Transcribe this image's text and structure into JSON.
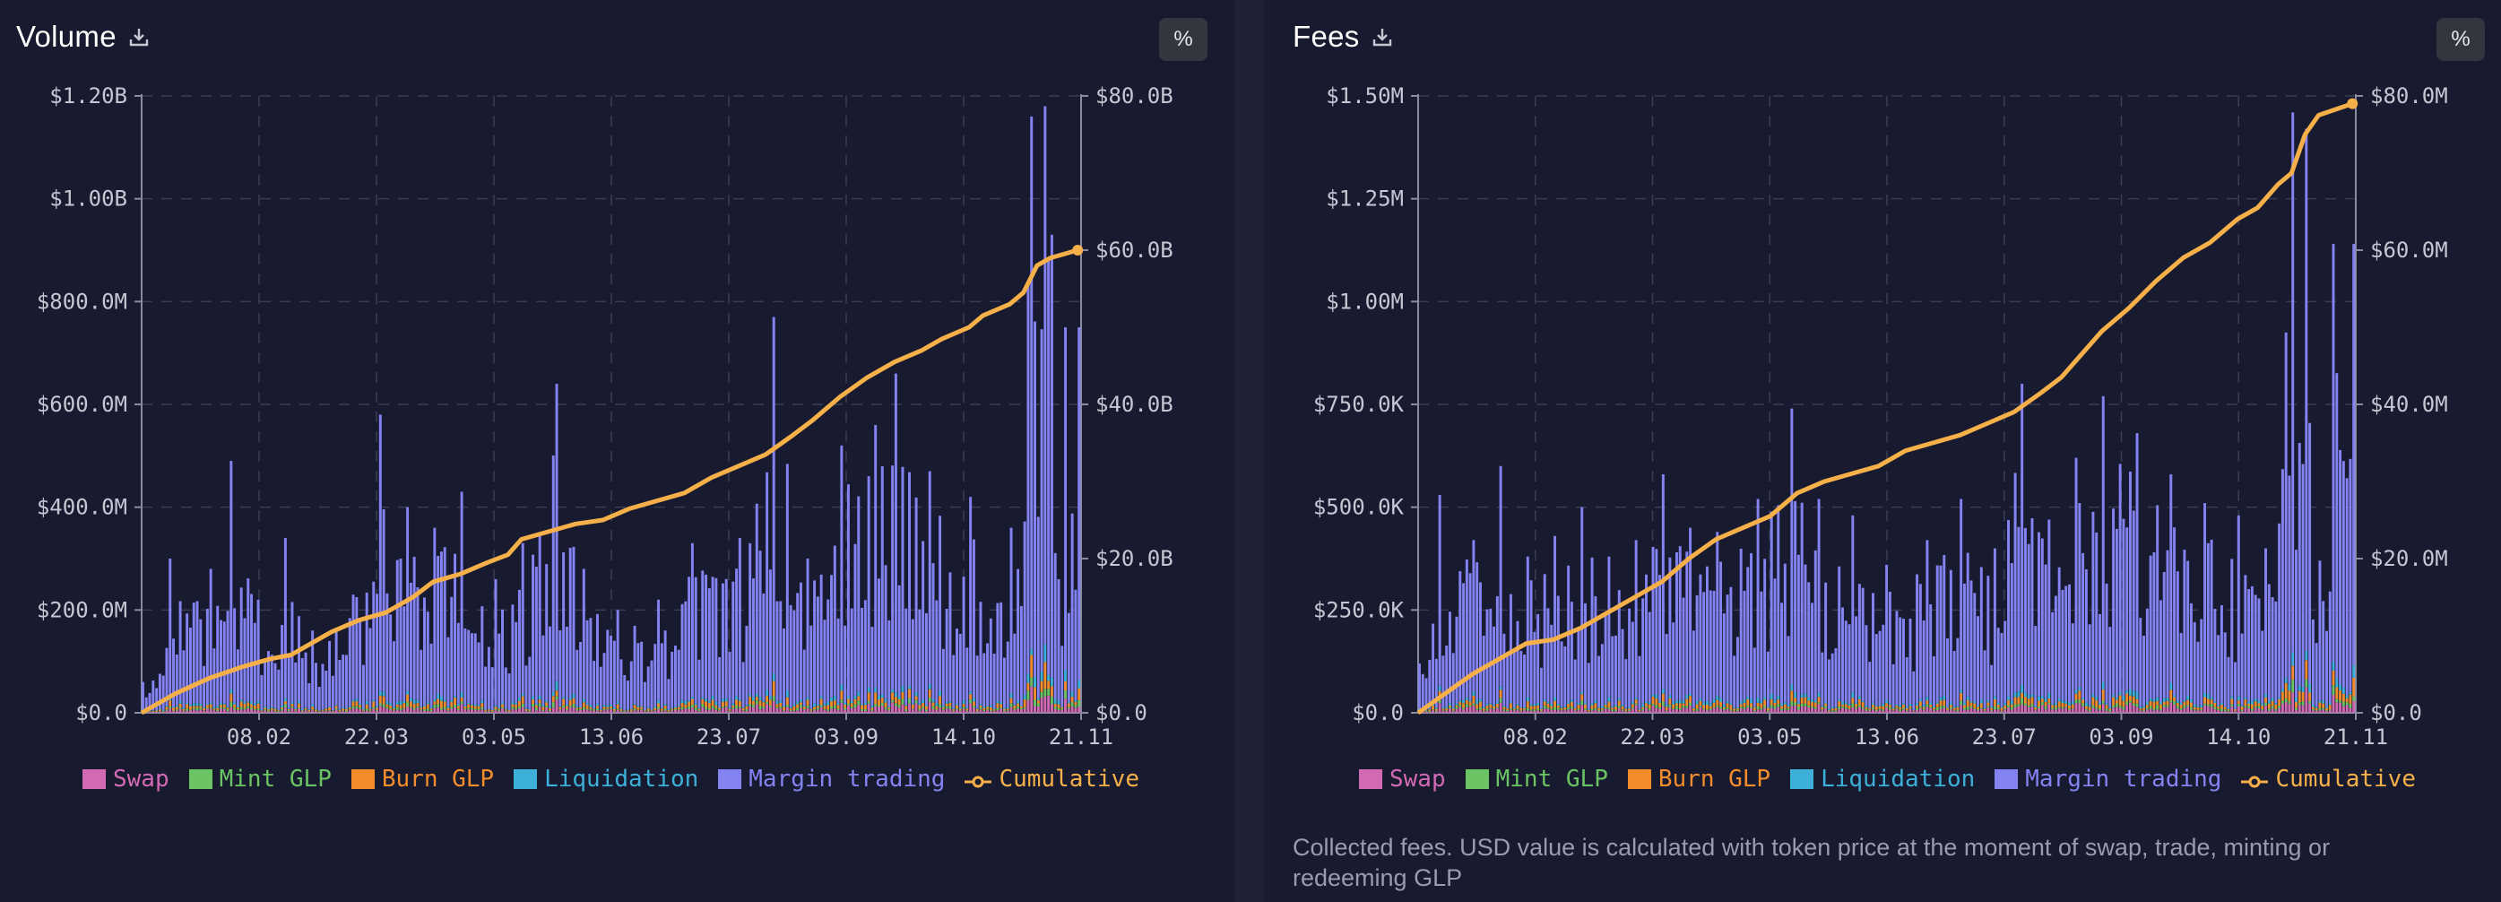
{
  "colors": {
    "swap": "#d26ab3",
    "mint_glp": "#6ac463",
    "burn_glp": "#f28c2c",
    "liquidation": "#3cb0d8",
    "margin_trading": "#8383f2",
    "cumulative": "#f6b04a",
    "grid": "#3a3c54"
  },
  "icons": {
    "download": "download-icon"
  },
  "volume": {
    "title": "Volume",
    "pct_label": "%",
    "legend": [
      "Swap",
      "Mint GLP",
      "Burn GLP",
      "Liquidation",
      "Margin trading",
      "Cumulative"
    ]
  },
  "fees": {
    "title": "Fees",
    "pct_label": "%",
    "legend": [
      "Swap",
      "Mint GLP",
      "Burn GLP",
      "Liquidation",
      "Margin trading",
      "Cumulative"
    ],
    "note": "Collected fees. USD value is calculated with token price at the moment of swap, trade, minting or redeeming GLP"
  },
  "chart_data": [
    {
      "type": "bar",
      "title": "Volume",
      "stacked": true,
      "x_ticks": [
        "08.02",
        "22.03",
        "03.05",
        "13.06",
        "23.07",
        "03.09",
        "14.10",
        "21.11"
      ],
      "left_axis": {
        "ticks": [
          "$0.0",
          "$200.0M",
          "$400.0M",
          "$600.0M",
          "$800.0M",
          "$1.00B",
          "$1.20B"
        ],
        "range": [
          0,
          1200000000
        ]
      },
      "right_axis": {
        "ticks": [
          "$0.0",
          "$20.0B",
          "$40.0B",
          "$60.0B",
          "$80.0B"
        ],
        "range": [
          0,
          80000000000
        ]
      },
      "grid": true,
      "legend_position": "bottom",
      "bar_peaks_millions": [
        [
          0,
          60
        ],
        [
          8,
          300
        ],
        [
          20,
          280
        ],
        [
          26,
          490
        ],
        [
          34,
          220
        ],
        [
          42,
          340
        ],
        [
          50,
          160
        ],
        [
          62,
          230
        ],
        [
          70,
          580
        ],
        [
          78,
          400
        ],
        [
          86,
          360
        ],
        [
          94,
          430
        ],
        [
          104,
          260
        ],
        [
          112,
          330
        ],
        [
          122,
          640
        ],
        [
          130,
          280
        ],
        [
          140,
          200
        ],
        [
          152,
          220
        ],
        [
          162,
          330
        ],
        [
          176,
          340
        ],
        [
          186,
          770
        ],
        [
          196,
          300
        ],
        [
          206,
          520
        ],
        [
          216,
          560
        ],
        [
          222,
          660
        ],
        [
          232,
          470
        ],
        [
          244,
          420
        ],
        [
          256,
          360
        ],
        [
          262,
          1160
        ],
        [
          266,
          1180
        ],
        [
          268,
          930
        ],
        [
          270,
          260
        ],
        [
          272,
          750
        ],
        [
          276,
          750
        ]
      ],
      "series": [
        {
          "name": "Swap"
        },
        {
          "name": "Mint GLP"
        },
        {
          "name": "Burn GLP"
        },
        {
          "name": "Liquidation"
        },
        {
          "name": "Margin trading"
        },
        {
          "name": "Cumulative",
          "axis": "right",
          "points_billions": [
            [
              0,
              0
            ],
            [
              10,
              2.5
            ],
            [
              20,
              4.5
            ],
            [
              30,
              6
            ],
            [
              38,
              7
            ],
            [
              44,
              7.5
            ],
            [
              50,
              9
            ],
            [
              56,
              10.5
            ],
            [
              64,
              12
            ],
            [
              72,
              13
            ],
            [
              80,
              15
            ],
            [
              86,
              17
            ],
            [
              94,
              18
            ],
            [
              102,
              19.5
            ],
            [
              108,
              20.5
            ],
            [
              112,
              22.5
            ],
            [
              120,
              23.5
            ],
            [
              128,
              24.5
            ],
            [
              136,
              25
            ],
            [
              144,
              26.5
            ],
            [
              152,
              27.5
            ],
            [
              160,
              28.5
            ],
            [
              168,
              30.5
            ],
            [
              176,
              32
            ],
            [
              184,
              33.5
            ],
            [
              192,
              36
            ],
            [
              198,
              38
            ],
            [
              206,
              41
            ],
            [
              214,
              43.5
            ],
            [
              222,
              45.5
            ],
            [
              230,
              47
            ],
            [
              236,
              48.5
            ],
            [
              244,
              50
            ],
            [
              248,
              51.5
            ],
            [
              256,
              53
            ],
            [
              260,
              54.5
            ],
            [
              264,
              58
            ],
            [
              268,
              59
            ],
            [
              276,
              60
            ]
          ]
        }
      ]
    },
    {
      "type": "bar",
      "title": "Fees",
      "stacked": true,
      "x_ticks": [
        "08.02",
        "22.03",
        "03.05",
        "13.06",
        "23.07",
        "03.09",
        "14.10",
        "21.11"
      ],
      "left_axis": {
        "ticks": [
          "$0.0",
          "$250.0K",
          "$500.0K",
          "$750.0K",
          "$1.00M",
          "$1.25M",
          "$1.50M"
        ],
        "range": [
          0,
          1500000
        ]
      },
      "right_axis": {
        "ticks": [
          "$0.0",
          "$20.0M",
          "$40.0M",
          "$60.0M",
          "$80.0M"
        ],
        "range": [
          0,
          80000000
        ]
      },
      "grid": true,
      "legend_position": "bottom",
      "bar_peaks_thousands": [
        [
          0,
          120
        ],
        [
          6,
          530
        ],
        [
          16,
          420
        ],
        [
          24,
          600
        ],
        [
          32,
          380
        ],
        [
          40,
          430
        ],
        [
          48,
          500
        ],
        [
          56,
          380
        ],
        [
          64,
          420
        ],
        [
          72,
          580
        ],
        [
          80,
          450
        ],
        [
          88,
          440
        ],
        [
          100,
          520
        ],
        [
          110,
          740
        ],
        [
          118,
          520
        ],
        [
          128,
          480
        ],
        [
          138,
          360
        ],
        [
          150,
          420
        ],
        [
          160,
          520
        ],
        [
          170,
          400
        ],
        [
          178,
          800
        ],
        [
          186,
          470
        ],
        [
          194,
          620
        ],
        [
          202,
          770
        ],
        [
          212,
          680
        ],
        [
          222,
          580
        ],
        [
          232,
          510
        ],
        [
          242,
          480
        ],
        [
          250,
          400
        ],
        [
          258,
          1460
        ],
        [
          262,
          1420
        ],
        [
          266,
          370
        ],
        [
          270,
          1140
        ],
        [
          276,
          1140
        ]
      ],
      "series": [
        {
          "name": "Swap"
        },
        {
          "name": "Mint GLP"
        },
        {
          "name": "Burn GLP"
        },
        {
          "name": "Liquidation"
        },
        {
          "name": "Margin trading"
        },
        {
          "name": "Cumulative",
          "axis": "right",
          "points_millions": [
            [
              0,
              0
            ],
            [
              8,
              2.5
            ],
            [
              16,
              5
            ],
            [
              24,
              7
            ],
            [
              32,
              9
            ],
            [
              40,
              9.5
            ],
            [
              48,
              11
            ],
            [
              56,
              13
            ],
            [
              64,
              15
            ],
            [
              72,
              17
            ],
            [
              80,
              20
            ],
            [
              88,
              22.5
            ],
            [
              96,
              24
            ],
            [
              104,
              25.5
            ],
            [
              112,
              28.5
            ],
            [
              120,
              30
            ],
            [
              128,
              31
            ],
            [
              136,
              32
            ],
            [
              144,
              34
            ],
            [
              152,
              35
            ],
            [
              160,
              36
            ],
            [
              168,
              37.5
            ],
            [
              176,
              39
            ],
            [
              184,
              41.5
            ],
            [
              190,
              43.5
            ],
            [
              196,
              46.5
            ],
            [
              202,
              49.5
            ],
            [
              210,
              52.5
            ],
            [
              218,
              56
            ],
            [
              226,
              59
            ],
            [
              234,
              61
            ],
            [
              242,
              64
            ],
            [
              248,
              65.5
            ],
            [
              254,
              68.5
            ],
            [
              258,
              70
            ],
            [
              262,
              75
            ],
            [
              266,
              77.5
            ],
            [
              276,
              79
            ]
          ]
        }
      ]
    }
  ]
}
